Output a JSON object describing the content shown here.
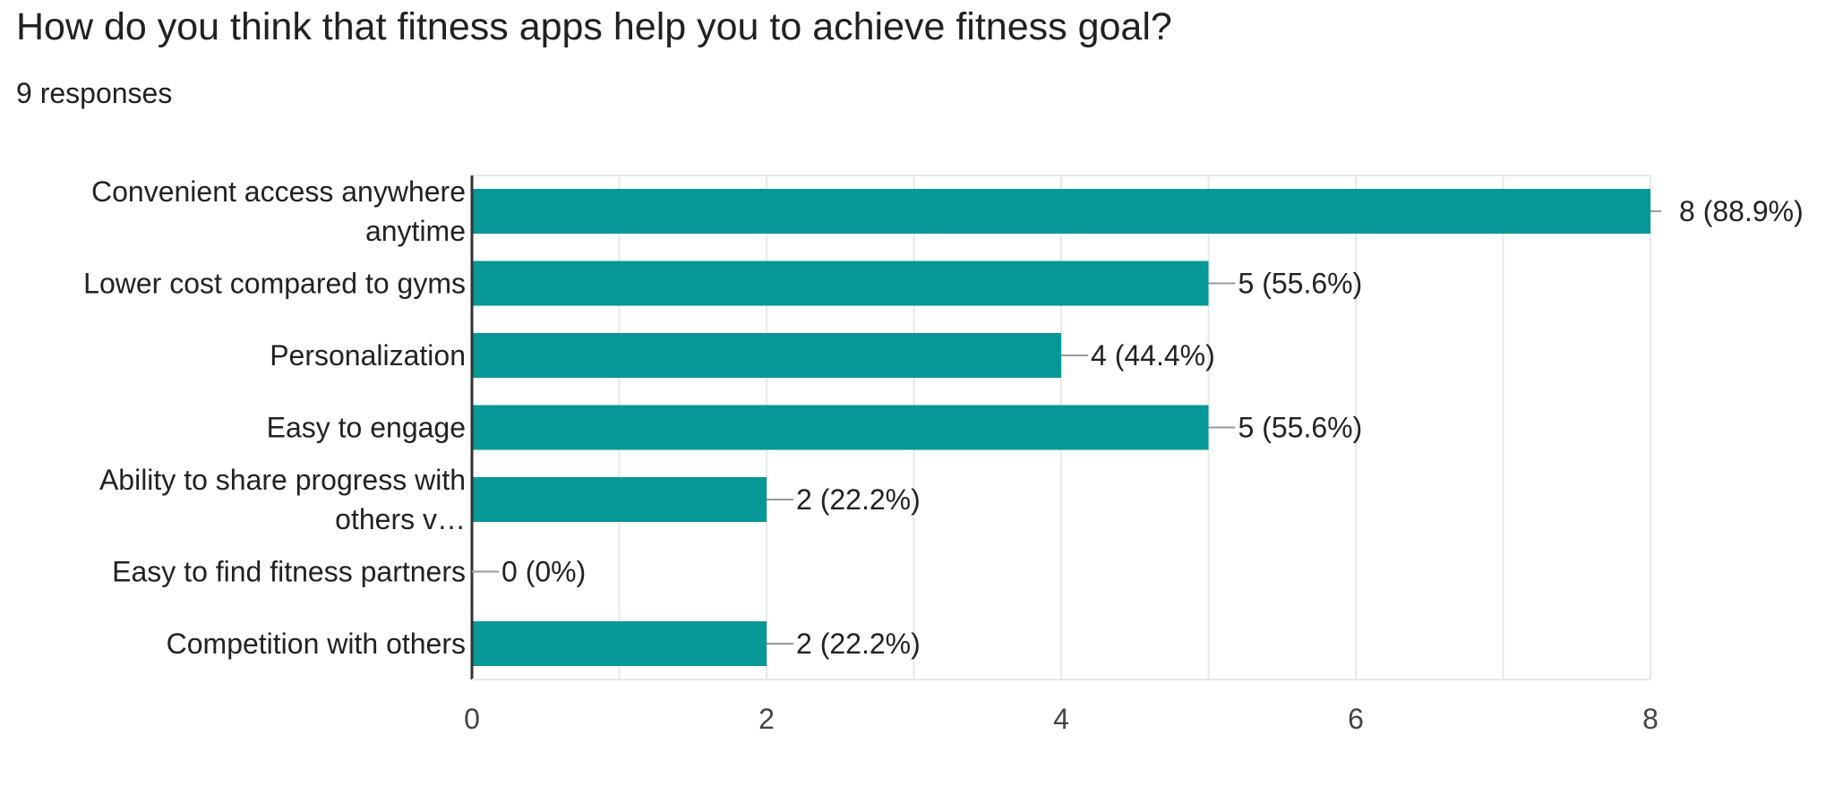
{
  "question": {
    "title": "How do you think that fitness apps help you to achieve fitness goal?",
    "responses": "9 responses"
  },
  "colors": {
    "bar": "#069797",
    "grid": "#e8e8e8",
    "axis": "#333333",
    "leader": "#999999"
  },
  "chart_data": {
    "type": "bar",
    "orientation": "horizontal",
    "categories": [
      "Convenient access anywhere anytime",
      "Lower cost compared to gyms",
      "Personalization",
      "Easy to engage",
      "Ability to share progress with others v…",
      "Easy to find fitness partners",
      "Competition with others"
    ],
    "category_lines": [
      [
        "Convenient access anywhere",
        "anytime"
      ],
      [
        "Lower cost compared to gyms"
      ],
      [
        "Personalization"
      ],
      [
        "Easy to engage"
      ],
      [
        "Ability to share progress with",
        "others v…"
      ],
      [
        "Easy to find fitness partners"
      ],
      [
        "Competition with others"
      ]
    ],
    "values": [
      8,
      5,
      4,
      5,
      2,
      0,
      2
    ],
    "data_labels": [
      "8 (88.9%)",
      "5 (55.6%)",
      "4 (44.4%)",
      "5 (55.6%)",
      "2 (22.2%)",
      "0 (0%)",
      "2 (22.2%)"
    ],
    "xlim": [
      0,
      8
    ],
    "xticks": [
      0,
      2,
      4,
      6,
      8
    ],
    "xtick_labels": [
      "0",
      "2",
      "4",
      "6",
      "8"
    ],
    "grid": true
  }
}
